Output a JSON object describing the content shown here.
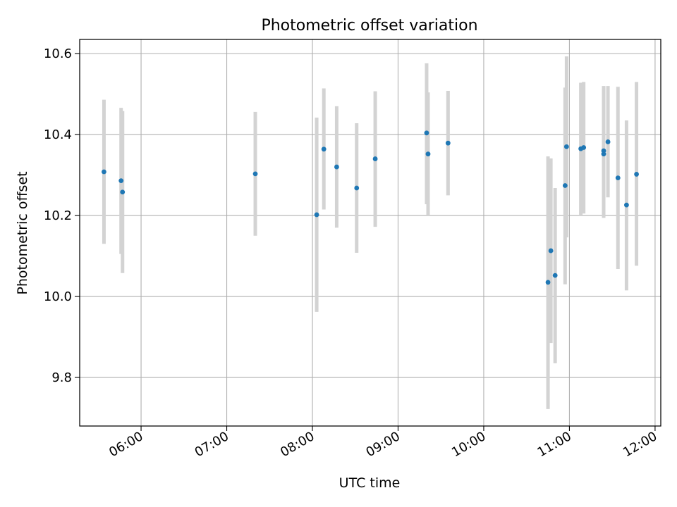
{
  "chart_data": {
    "type": "scatter",
    "title": "Photometric offset variation",
    "xlabel": "UTC time",
    "ylabel": "Photometric offset",
    "x_ticks": [
      "06:00",
      "07:00",
      "08:00",
      "09:00",
      "10:00",
      "11:00",
      "12:00"
    ],
    "y_ticks": [
      "9.8",
      "10.0",
      "10.2",
      "10.4",
      "10.6"
    ],
    "xlim": [
      "05:17",
      "12:04"
    ],
    "ylim": [
      9.68,
      10.635
    ],
    "grid": true,
    "marker_color": "#1f77b4",
    "errorbar_color": "#d3d3d3",
    "points": [
      {
        "t": "05:34",
        "y": 10.308,
        "lo": 10.13,
        "hi": 10.486
      },
      {
        "t": "05:46",
        "y": 10.286,
        "lo": 10.105,
        "hi": 10.466
      },
      {
        "t": "05:47",
        "y": 10.258,
        "lo": 10.058,
        "hi": 10.458
      },
      {
        "t": "07:20",
        "y": 10.303,
        "lo": 10.15,
        "hi": 10.456
      },
      {
        "t": "08:03",
        "y": 10.202,
        "lo": 9.962,
        "hi": 10.442
      },
      {
        "t": "08:08",
        "y": 10.364,
        "lo": 10.215,
        "hi": 10.514
      },
      {
        "t": "08:17",
        "y": 10.32,
        "lo": 10.17,
        "hi": 10.47
      },
      {
        "t": "08:31",
        "y": 10.268,
        "lo": 10.108,
        "hi": 10.428
      },
      {
        "t": "08:44",
        "y": 10.34,
        "lo": 10.172,
        "hi": 10.507
      },
      {
        "t": "09:20",
        "y": 10.404,
        "lo": 10.228,
        "hi": 10.576
      },
      {
        "t": "09:21",
        "y": 10.352,
        "lo": 10.2,
        "hi": 10.504
      },
      {
        "t": "09:35",
        "y": 10.379,
        "lo": 10.25,
        "hi": 10.508
      },
      {
        "t": "10:45",
        "y": 10.035,
        "lo": 9.722,
        "hi": 10.346
      },
      {
        "t": "10:47",
        "y": 10.113,
        "lo": 9.885,
        "hi": 10.341
      },
      {
        "t": "10:50",
        "y": 10.052,
        "lo": 9.835,
        "hi": 10.268
      },
      {
        "t": "10:57",
        "y": 10.274,
        "lo": 10.03,
        "hi": 10.516
      },
      {
        "t": "10:58",
        "y": 10.37,
        "lo": 10.146,
        "hi": 10.593
      },
      {
        "t": "11:08",
        "y": 10.365,
        "lo": 10.2,
        "hi": 10.528
      },
      {
        "t": "11:10",
        "y": 10.368,
        "lo": 10.205,
        "hi": 10.53
      },
      {
        "t": "11:24",
        "y": 10.36,
        "lo": 10.2,
        "hi": 10.52
      },
      {
        "t": "11:24",
        "y": 10.352,
        "lo": 10.194,
        "hi": 10.51
      },
      {
        "t": "11:27",
        "y": 10.382,
        "lo": 10.245,
        "hi": 10.52
      },
      {
        "t": "11:34",
        "y": 10.293,
        "lo": 10.068,
        "hi": 10.518
      },
      {
        "t": "11:40",
        "y": 10.226,
        "lo": 10.015,
        "hi": 10.435
      },
      {
        "t": "11:47",
        "y": 10.302,
        "lo": 10.076,
        "hi": 10.53
      }
    ]
  }
}
